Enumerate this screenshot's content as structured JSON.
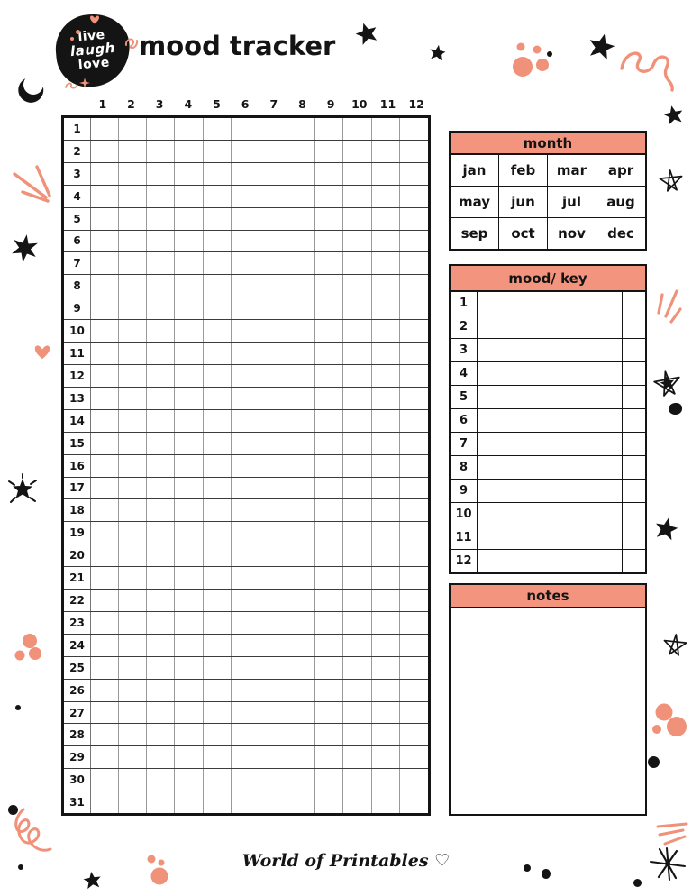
{
  "colors": {
    "salmon_header": "#f2947e",
    "coral_accent": "#f09179",
    "ink": "#141414",
    "grid_minor_line": "#9a9a9a",
    "grid_major_line": "#3c3c3c"
  },
  "logo": {
    "line1": "live",
    "line2": "laugh",
    "line3": "love"
  },
  "header": {
    "title": "mood tracker"
  },
  "tracker_grid": {
    "column_headers": [
      "1",
      "2",
      "3",
      "4",
      "5",
      "6",
      "7",
      "8",
      "9",
      "10",
      "11",
      "12"
    ],
    "row_labels": [
      "1",
      "2",
      "3",
      "4",
      "5",
      "6",
      "7",
      "8",
      "9",
      "10",
      "11",
      "12",
      "13",
      "14",
      "15",
      "16",
      "17",
      "18",
      "19",
      "20",
      "21",
      "22",
      "23",
      "24",
      "25",
      "26",
      "27",
      "28",
      "29",
      "30",
      "31"
    ]
  },
  "month_panel": {
    "title": "month",
    "rows": [
      [
        "jan",
        "feb",
        "mar",
        "apr"
      ],
      [
        "may",
        "jun",
        "jul",
        "aug"
      ],
      [
        "sep",
        "oct",
        "nov",
        "dec"
      ]
    ]
  },
  "mood_key_panel": {
    "title": "mood/ key",
    "row_numbers": [
      "1",
      "2",
      "3",
      "4",
      "5",
      "6",
      "7",
      "8",
      "9",
      "10",
      "11",
      "12"
    ]
  },
  "notes_panel": {
    "title": "notes"
  },
  "footer": {
    "brand": "World of Printables ♡"
  }
}
